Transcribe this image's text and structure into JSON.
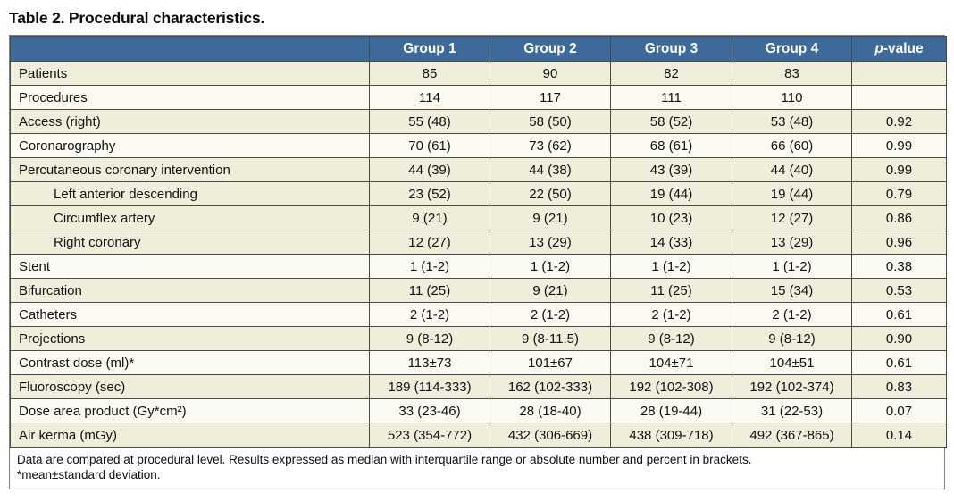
{
  "page_title": "Table 2. Procedural characteristics.",
  "colors": {
    "header_bg": "#3d699b",
    "header_text": "#ffffff",
    "header_divider": "#c2cfdf",
    "row_cream": "#f0edda",
    "row_white": "#fbfaf2",
    "grid_line": "#4a4a42"
  },
  "table": {
    "columns": [
      "",
      "Group 1",
      "Group 2",
      "Group 3",
      "Group 4",
      "p-value"
    ],
    "header_p_italic": "p",
    "header_p_rest": "-value",
    "rows": [
      {
        "label": "Patients",
        "indent": false,
        "shade": "cream",
        "values": [
          "85",
          "90",
          "82",
          "83",
          ""
        ]
      },
      {
        "label": "Procedures",
        "indent": false,
        "shade": "white",
        "values": [
          "114",
          "117",
          "111",
          "110",
          ""
        ]
      },
      {
        "label": "Access (right)",
        "indent": false,
        "shade": "cream",
        "values": [
          "55 (48)",
          "58 (50)",
          "58 (52)",
          "53 (48)",
          "0.92"
        ]
      },
      {
        "label": "Coronarography",
        "indent": false,
        "shade": "white",
        "values": [
          "70 (61)",
          "73 (62)",
          "68 (61)",
          "66 (60)",
          "0.99"
        ]
      },
      {
        "label": "Percutaneous coronary intervention",
        "indent": false,
        "shade": "cream",
        "values": [
          "44 (39)",
          "44 (38)",
          "43 (39)",
          "44 (40)",
          "0.99"
        ]
      },
      {
        "label": "Left anterior descending",
        "indent": true,
        "shade": "cream",
        "values": [
          "23 (52)",
          "22 (50)",
          "19 (44)",
          "19 (44)",
          "0.79"
        ]
      },
      {
        "label": "Circumflex artery",
        "indent": true,
        "shade": "cream",
        "values": [
          "9 (21)",
          "9 (21)",
          "10 (23)",
          "12 (27)",
          "0.86"
        ]
      },
      {
        "label": "Right coronary",
        "indent": true,
        "shade": "cream",
        "values": [
          "12 (27)",
          "13 (29)",
          "14 (33)",
          "13 (29)",
          "0.96"
        ]
      },
      {
        "label": "Stent",
        "indent": false,
        "shade": "white",
        "values": [
          "1 (1-2)",
          "1 (1-2)",
          "1 (1-2)",
          "1 (1-2)",
          "0.38"
        ]
      },
      {
        "label": "Bifurcation",
        "indent": false,
        "shade": "cream",
        "values": [
          "11 (25)",
          "9 (21)",
          "11 (25)",
          "15 (34)",
          "0.53"
        ]
      },
      {
        "label": "Catheters",
        "indent": false,
        "shade": "white",
        "values": [
          "2 (1-2)",
          "2 (1-2)",
          "2 (1-2)",
          "2 (1-2)",
          "0.61"
        ]
      },
      {
        "label": "Projections",
        "indent": false,
        "shade": "cream",
        "values": [
          "9 (8-12)",
          "9 (8-11.5)",
          "9 (8-12)",
          "9 (8-12)",
          "0.90"
        ]
      },
      {
        "label": "Contrast dose (ml)*",
        "indent": false,
        "shade": "white",
        "values": [
          "113±73",
          "101±67",
          "104±71",
          "104±51",
          "0.61"
        ]
      },
      {
        "label": "Fluoroscopy (sec)",
        "indent": false,
        "shade": "cream",
        "values": [
          "189 (114-333)",
          "162 (102-333)",
          "192 (102-308)",
          "192 (102-374)",
          "0.83"
        ]
      },
      {
        "label": "Dose area product (Gy*cm²)",
        "indent": false,
        "shade": "white",
        "values": [
          "33 (23-46)",
          "28 (18-40)",
          "28 (19-44)",
          "31 (22-53)",
          "0.07"
        ]
      },
      {
        "label": "Air kerma (mGy)",
        "indent": false,
        "shade": "cream",
        "values": [
          "523 (354-772)",
          "432 (306-669)",
          "438 (309-718)",
          "492 (367-865)",
          "0.14"
        ]
      }
    ],
    "footnote_line1": "Data are compared at procedural level. Results expressed as median with interquartile range or absolute number and percent in brackets.",
    "footnote_line2": "*mean±standard deviation."
  }
}
